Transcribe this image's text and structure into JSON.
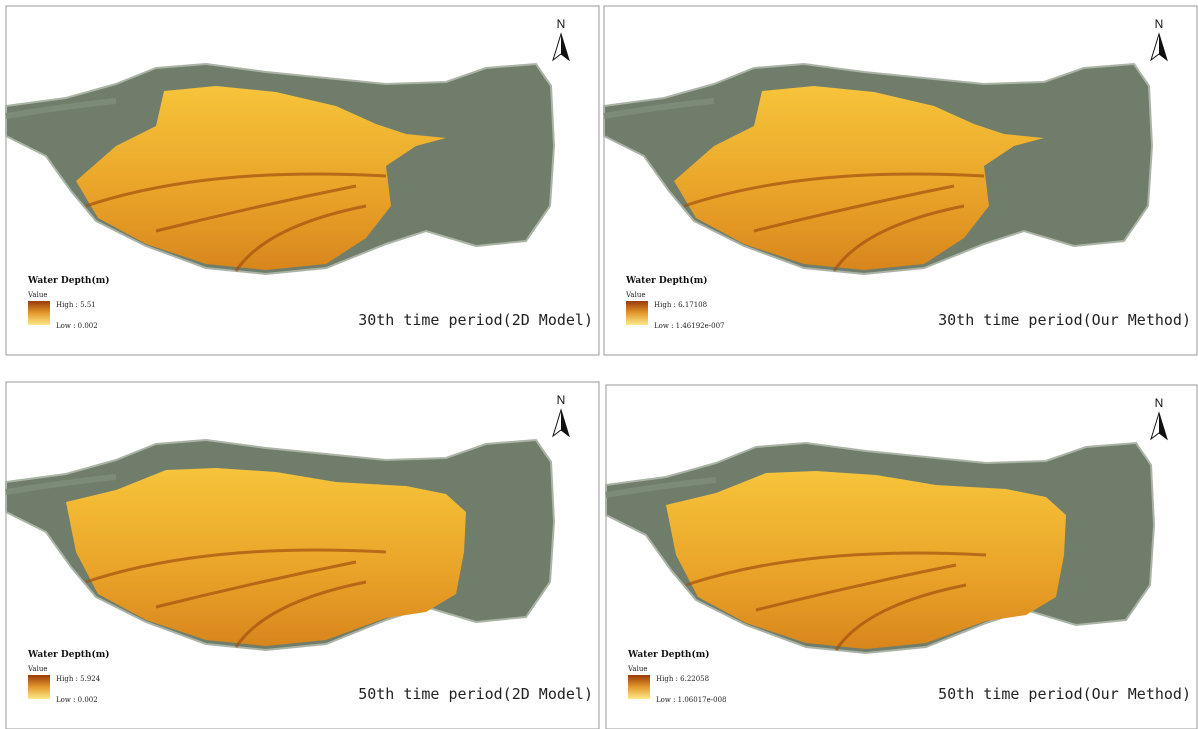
{
  "panels": [
    {
      "north": "N",
      "legend_title": "Water Depth(m)",
      "value_label": "Value",
      "high": "High : 5.51",
      "low": "Low : 0.002",
      "caption": "30th time period(2D Model)"
    },
    {
      "north": "N",
      "legend_title": "Water Depth(m)",
      "value_label": "Value",
      "high": "High : 6.17108",
      "low": "Low : 1.46192e-007",
      "caption": "30th time period(Our Method)"
    },
    {
      "north": "N",
      "legend_title": "Water Depth(m)",
      "value_label": "Value",
      "high": "High : 5.924",
      "low": "Low : 0.002",
      "caption": "50th time period(2D Model)"
    },
    {
      "north": "N",
      "legend_title": "Water Depth(m)",
      "value_label": "Value",
      "high": "High : 6.22058",
      "low": "Low : 1.06017e-008",
      "caption": "50th time period(Our Method)"
    }
  ]
}
